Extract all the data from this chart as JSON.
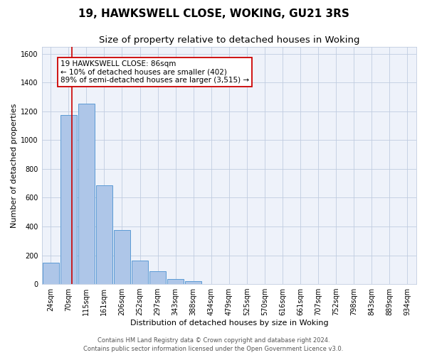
{
  "title": "19, HAWKSWELL CLOSE, WOKING, GU21 3RS",
  "subtitle": "Size of property relative to detached houses in Woking",
  "xlabel": "Distribution of detached houses by size in Woking",
  "ylabel": "Number of detached properties",
  "bar_labels": [
    "24sqm",
    "70sqm",
    "115sqm",
    "161sqm",
    "206sqm",
    "252sqm",
    "297sqm",
    "343sqm",
    "388sqm",
    "434sqm",
    "479sqm",
    "525sqm",
    "570sqm",
    "616sqm",
    "661sqm",
    "707sqm",
    "752sqm",
    "798sqm",
    "843sqm",
    "889sqm",
    "934sqm"
  ],
  "bar_values": [
    150,
    1175,
    1255,
    685,
    375,
    165,
    90,
    35,
    20,
    0,
    0,
    0,
    0,
    0,
    0,
    0,
    0,
    0,
    0,
    0,
    0
  ],
  "bar_color": "#aec6e8",
  "bar_edge_color": "#5b9bd5",
  "ylim": [
    0,
    1650
  ],
  "yticks": [
    0,
    200,
    400,
    600,
    800,
    1000,
    1200,
    1400,
    1600
  ],
  "vline_x": 1.18,
  "vline_color": "#cc0000",
  "annotation_title": "19 HAWKSWELL CLOSE: 86sqm",
  "annotation_line1": "← 10% of detached houses are smaller (402)",
  "annotation_line2": "89% of semi-detached houses are larger (3,515) →",
  "footer1": "Contains HM Land Registry data © Crown copyright and database right 2024.",
  "footer2": "Contains public sector information licensed under the Open Government Licence v3.0.",
  "background_color": "#eef2fa",
  "grid_color": "#c0cce0",
  "title_fontsize": 11,
  "subtitle_fontsize": 9.5,
  "axis_label_fontsize": 8,
  "tick_fontsize": 7,
  "footer_fontsize": 6
}
